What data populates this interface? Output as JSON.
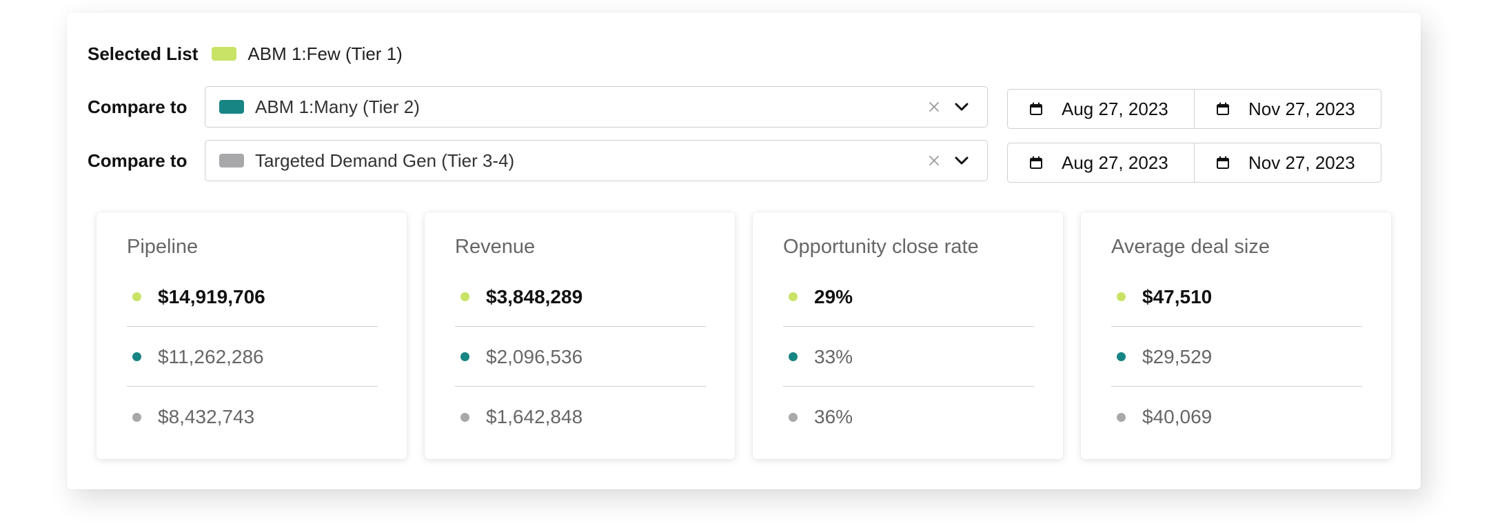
{
  "colors": {
    "tier1": "#c8e366",
    "tier2": "#178584",
    "tier3": "#a8a8ab"
  },
  "selected": {
    "label": "Selected List",
    "list_name": "ABM 1:Few (Tier 1)"
  },
  "compare": [
    {
      "label": "Compare to",
      "value": "ABM 1:Many (Tier 2)",
      "start_date": "Aug 27, 2023",
      "end_date": "Nov 27, 2023"
    },
    {
      "label": "Compare to",
      "value": "Targeted Demand Gen (Tier 3-4)",
      "start_date": "Aug 27, 2023",
      "end_date": "Nov 27, 2023"
    }
  ],
  "icons": {
    "clear": "close-icon",
    "dropdown": "chevron-down-icon",
    "date": "calendar-icon"
  },
  "cards": [
    {
      "title": "Pipeline",
      "values": [
        "$14,919,706",
        "$11,262,286",
        "$8,432,743"
      ]
    },
    {
      "title": "Revenue",
      "values": [
        "$3,848,289",
        "$2,096,536",
        "$1,642,848"
      ]
    },
    {
      "title": "Opportunity close rate",
      "values": [
        "29%",
        "33%",
        "36%"
      ]
    },
    {
      "title": "Average deal size",
      "values": [
        "$47,510",
        "$29,529",
        "$40,069"
      ]
    }
  ]
}
